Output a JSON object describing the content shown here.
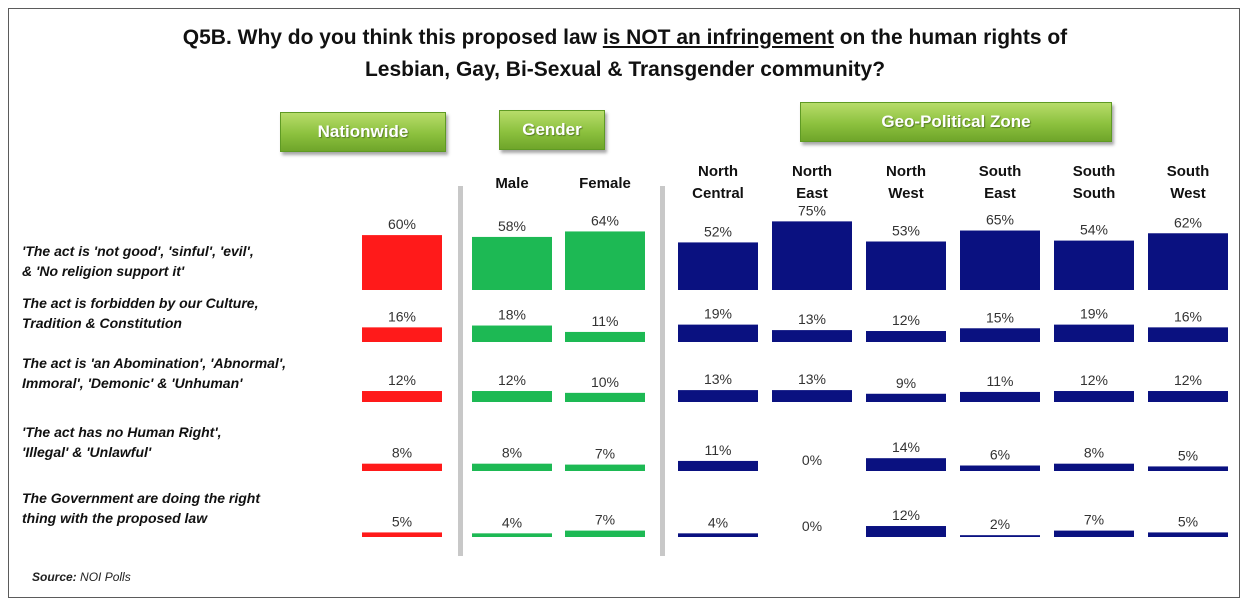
{
  "title_line1_prefix": "Q5B. Why do you think this proposed law ",
  "title_line1_underlined": "is NOT an infringement",
  "title_line1_suffix": " on the human rights of",
  "title_line2": "Lesbian, Gay, Bi-Sexual & Transgender community?",
  "groups": {
    "nationwide": "Nationwide",
    "gender": "Gender",
    "zone": "Geo-Political Zone"
  },
  "source_label": "Source:",
  "source_value": "NOI Polls",
  "colors": {
    "nationwide": "#ff1a1a",
    "gender": "#1db954",
    "zone": "#0a1180",
    "button": "#8cc13e",
    "divider": "#c8c8c8"
  },
  "chart_data": {
    "type": "bar",
    "title": "Q5B. Why do you think this proposed law is NOT an infringement on the human rights of Lesbian, Gay, Bi-Sexual & Transgender community?",
    "categories": [
      "'The act is 'not good', 'sinful', 'evil', & 'No religion support it'",
      "The act is forbidden by our Culture, Tradition & Constitution",
      "The act is 'an Abomination', 'Abnormal', Immoral', 'Demonic' & 'Unhuman'",
      "'The act has no Human Right', 'Illegal' & 'Unlawful'",
      "The Government are doing the right thing with the proposed law"
    ],
    "category_lines": [
      [
        "'The act is 'not good', 'sinful', 'evil',",
        "& 'No religion support it'"
      ],
      [
        "The act is forbidden by our Culture,",
        "Tradition & Constitution"
      ],
      [
        "The act is 'an Abomination', 'Abnormal',",
        "Immoral', 'Demonic' & 'Unhuman'"
      ],
      [
        "'The act has no Human Right',",
        "'Illegal' & 'Unlawful'"
      ],
      [
        "The Government are doing the right",
        "thing with the proposed law"
      ]
    ],
    "series": [
      {
        "name": "Nationwide",
        "group": "nationwide",
        "header": [],
        "values": [
          60,
          16,
          12,
          8,
          5
        ],
        "labels": [
          "60%",
          "16%",
          "12%",
          "8%",
          "5%"
        ]
      },
      {
        "name": "Male",
        "group": "gender",
        "header": [
          "Male"
        ],
        "values": [
          58,
          18,
          12,
          8,
          4
        ],
        "labels": [
          "58%",
          "18%",
          "12%",
          "8%",
          "4%"
        ]
      },
      {
        "name": "Female",
        "group": "gender",
        "header": [
          "Female"
        ],
        "values": [
          64,
          11,
          10,
          7,
          7
        ],
        "labels": [
          "64%",
          "11%",
          "10%",
          "7%",
          "7%"
        ]
      },
      {
        "name": "North Central",
        "group": "zone",
        "header": [
          "North",
          "Central"
        ],
        "values": [
          52,
          19,
          13,
          11,
          4
        ],
        "labels": [
          "52%",
          "19%",
          "13%",
          "11%",
          "4%"
        ]
      },
      {
        "name": "North East",
        "group": "zone",
        "header": [
          "North",
          "East"
        ],
        "values": [
          75,
          13,
          13,
          0,
          0
        ],
        "labels": [
          "75%",
          "13%",
          "13%",
          "0%",
          "0%"
        ]
      },
      {
        "name": "North West",
        "group": "zone",
        "header": [
          "North",
          "West"
        ],
        "values": [
          53,
          12,
          9,
          14,
          12
        ],
        "labels": [
          "53%",
          "12%",
          "9%",
          "14%",
          "12%"
        ]
      },
      {
        "name": "South East",
        "group": "zone",
        "header": [
          "South",
          "East"
        ],
        "values": [
          65,
          15,
          11,
          6,
          2
        ],
        "labels": [
          "65%",
          "15%",
          "11%",
          "6%",
          "2%"
        ]
      },
      {
        "name": "South South",
        "group": "zone",
        "header": [
          "South",
          "South"
        ],
        "values": [
          54,
          19,
          12,
          8,
          7
        ],
        "labels": [
          "54%",
          "19%",
          "12%",
          "8%",
          "7%"
        ]
      },
      {
        "name": "South West",
        "group": "zone",
        "header": [
          "South",
          "West"
        ],
        "values": [
          62,
          16,
          12,
          5,
          5
        ],
        "labels": [
          "62%",
          "16%",
          "12%",
          "5%",
          "5%"
        ]
      }
    ],
    "unit": "%"
  }
}
